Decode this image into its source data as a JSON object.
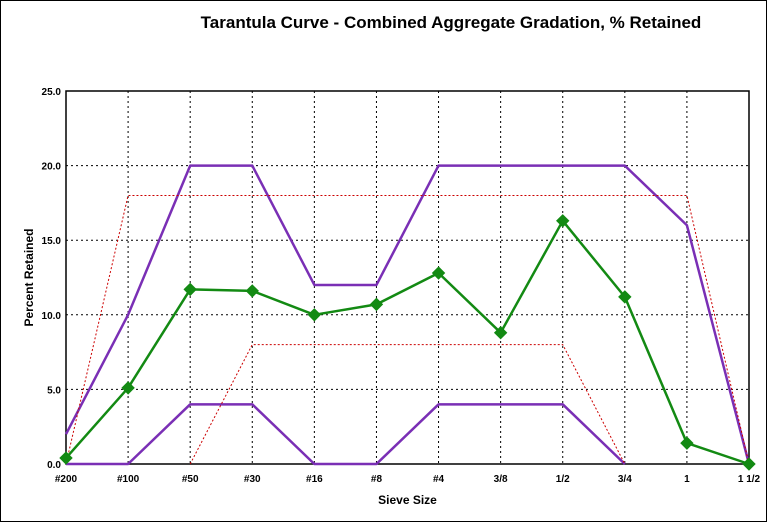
{
  "chart_data": {
    "type": "line",
    "title": "Tarantula Curve - Combined Aggregate Gradation, % Retained",
    "xlabel": "Sieve Size",
    "ylabel": "Percent Retained",
    "categories": [
      "#200",
      "#100",
      "#50",
      "#30",
      "#16",
      "#8",
      "#4",
      "3/8",
      "1/2",
      "3/4",
      "1",
      "1 1/2"
    ],
    "ylim": [
      0,
      25
    ],
    "yticks": [
      "0.0",
      "5.0",
      "10.0",
      "15.0",
      "20.0",
      "25.0"
    ],
    "grid": true,
    "legend": "none",
    "series": [
      {
        "color": "#7a2fb5",
        "style": "solid",
        "width": 2.5,
        "marker": false,
        "values": [
          2,
          10,
          20,
          20,
          12,
          12,
          20,
          20,
          20,
          20,
          16,
          0
        ]
      },
      {
        "color": "#7a2fb5",
        "style": "solid",
        "width": 2.5,
        "marker": false,
        "values": [
          0,
          0,
          4,
          4,
          0,
          0,
          4,
          4,
          4,
          0,
          null,
          null
        ]
      },
      {
        "color": "#cc0000",
        "style": "dotted",
        "width": 1,
        "marker": false,
        "values": [
          0,
          18,
          18,
          18,
          18,
          18,
          18,
          18,
          18,
          18,
          18,
          0
        ]
      },
      {
        "color": "#cc0000",
        "style": "dotted",
        "width": 1,
        "marker": false,
        "values": [
          null,
          null,
          0,
          8,
          8,
          8,
          8,
          8,
          8,
          0,
          null,
          null
        ]
      },
      {
        "color": "#138a13",
        "style": "solid",
        "width": 2.5,
        "marker": true,
        "values": [
          0.4,
          5.1,
          11.7,
          11.6,
          10.0,
          10.7,
          12.8,
          8.8,
          16.3,
          11.2,
          1.4,
          0.0
        ]
      }
    ]
  }
}
